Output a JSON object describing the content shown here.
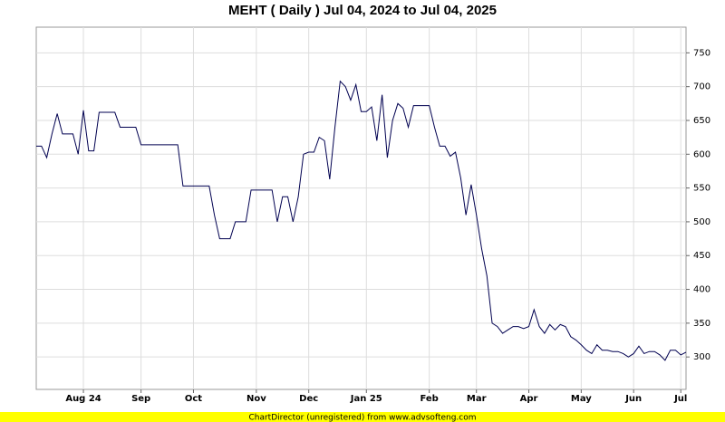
{
  "chart_data": {
    "type": "line",
    "title": "MEHT ( Daily ) Jul 04, 2024 to Jul 04, 2025",
    "footer": "ChartDirector (unregistered) from www.advsofteng.com",
    "categories": [
      null,
      null,
      null,
      null,
      null,
      null,
      null,
      null,
      null,
      "Aug 24",
      null,
      null,
      null,
      null,
      null,
      null,
      null,
      null,
      null,
      null,
      "Sep",
      null,
      null,
      null,
      null,
      null,
      null,
      null,
      null,
      null,
      "Oct",
      null,
      null,
      null,
      null,
      null,
      null,
      null,
      null,
      null,
      null,
      null,
      "Nov",
      null,
      null,
      null,
      null,
      null,
      null,
      null,
      null,
      null,
      "Dec",
      null,
      null,
      null,
      null,
      null,
      null,
      null,
      null,
      null,
      null,
      "Jan 25",
      null,
      null,
      null,
      null,
      null,
      null,
      null,
      null,
      null,
      null,
      null,
      "Feb",
      null,
      null,
      null,
      null,
      null,
      null,
      null,
      null,
      "Mar",
      null,
      null,
      null,
      null,
      null,
      null,
      null,
      null,
      null,
      "Apr",
      null,
      null,
      null,
      null,
      null,
      null,
      null,
      null,
      null,
      "May",
      null,
      null,
      null,
      null,
      null,
      null,
      null,
      null,
      null,
      "Jun",
      null,
      null,
      null,
      null,
      null,
      null,
      null,
      null,
      "Jul",
      null
    ],
    "values": [
      612,
      612,
      595,
      630,
      660,
      630,
      630,
      630,
      600,
      665,
      605,
      605,
      662,
      662,
      662,
      662,
      640,
      640,
      640,
      640,
      614,
      614,
      614,
      614,
      614,
      614,
      614,
      614,
      553,
      553,
      553,
      553,
      553,
      553,
      510,
      475,
      475,
      475,
      500,
      500,
      500,
      547,
      547,
      547,
      547,
      547,
      500,
      537,
      537,
      500,
      537,
      600,
      603,
      603,
      625,
      620,
      563,
      640,
      708,
      700,
      680,
      703,
      663,
      663,
      670,
      620,
      688,
      595,
      650,
      675,
      668,
      640,
      672,
      672,
      672,
      672,
      640,
      612,
      612,
      597,
      603,
      565,
      510,
      555,
      510,
      460,
      420,
      350,
      345,
      335,
      340,
      345,
      345,
      342,
      345,
      370,
      345,
      335,
      348,
      340,
      348,
      345,
      330,
      325,
      318,
      310,
      305,
      318,
      310,
      310,
      308,
      308,
      305,
      300,
      305,
      316,
      305,
      308,
      308,
      303,
      295,
      310,
      310,
      303,
      307
    ],
    "color": "#000050",
    "ylim": [
      252,
      788
    ],
    "yticks": [
      300,
      350,
      400,
      450,
      500,
      550,
      600,
      650,
      700,
      750
    ],
    "grid": true
  }
}
